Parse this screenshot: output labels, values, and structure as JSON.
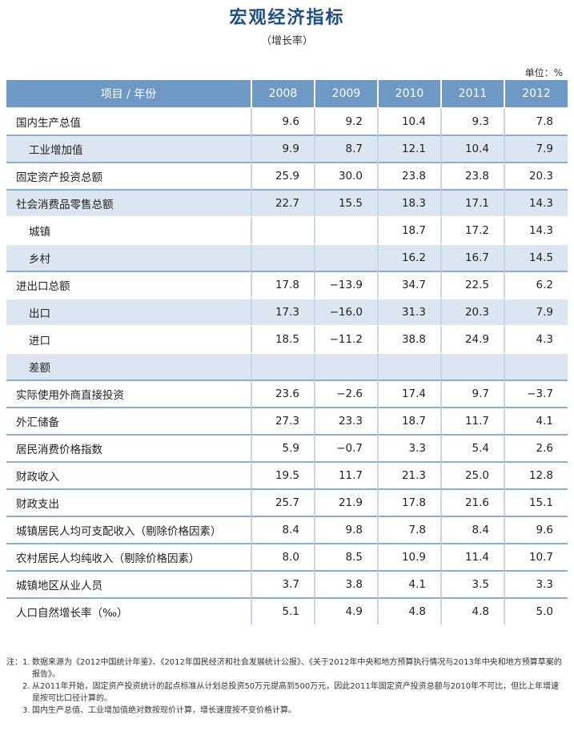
{
  "title": "宏观经济指标",
  "subtitle": "（增长率）",
  "unit": "单位：%",
  "table": {
    "headers": [
      "项目 / 年份",
      "2008",
      "2009",
      "2010",
      "2011",
      "2012"
    ],
    "rows": [
      {
        "label": "国内生产总值",
        "values": [
          "9.6",
          "9.2",
          "10.4",
          "9.3",
          "7.8"
        ]
      },
      {
        "label": "工业增加值",
        "values": [
          "9.9",
          "8.7",
          "12.1",
          "10.4",
          "7.9"
        ]
      },
      {
        "label": "固定资产投资总额",
        "values": [
          "25.9",
          "30.0",
          "23.8",
          "23.8",
          "20.3"
        ]
      },
      {
        "label": "社会消费品零售总额",
        "values": [
          "22.7",
          "15.5",
          "18.3",
          "17.1",
          "14.3"
        ]
      },
      {
        "label": "城镇",
        "values": [
          "",
          "",
          "18.7",
          "17.2",
          "14.3"
        ]
      },
      {
        "label": "乡村",
        "values": [
          "",
          "",
          "16.2",
          "16.7",
          "14.5"
        ]
      },
      {
        "label": "进出口总额",
        "values": [
          "17.8",
          "−13.9",
          "34.7",
          "22.5",
          "6.2"
        ]
      },
      {
        "label": "出口",
        "values": [
          "17.3",
          "−16.0",
          "31.3",
          "20.3",
          "7.9"
        ]
      },
      {
        "label": "进口",
        "values": [
          "18.5",
          "−11.2",
          "38.8",
          "24.9",
          "4.3"
        ]
      },
      {
        "label": "差额",
        "values": [
          "",
          "",
          "",
          "",
          ""
        ]
      },
      {
        "label": "实际使用外商直接投资",
        "values": [
          "23.6",
          "−2.6",
          "17.4",
          "9.7",
          "−3.7"
        ]
      },
      {
        "label": "外汇储备",
        "values": [
          "27.3",
          "23.3",
          "18.7",
          "11.7",
          "4.1"
        ]
      },
      {
        "label": "居民消费价格指数",
        "values": [
          "5.9",
          "−0.7",
          "3.3",
          "5.4",
          "2.6"
        ]
      },
      {
        "label": "财政收入",
        "values": [
          "19.5",
          "11.7",
          "21.3",
          "25.0",
          "12.8"
        ]
      },
      {
        "label": "财政支出",
        "values": [
          "25.7",
          "21.9",
          "17.8",
          "21.6",
          "15.1"
        ]
      },
      {
        "label": "城镇居民人均可支配收入（剔除价格因素）",
        "values": [
          "8.4",
          "9.8",
          "7.8",
          "8.4",
          "9.6"
        ]
      },
      {
        "label": "农村居民人均纯收入（剔除价格因素）",
        "values": [
          "8.0",
          "8.5",
          "10.9",
          "11.4",
          "10.7"
        ]
      },
      {
        "label": "城镇地区从业人员",
        "values": [
          "3.7",
          "3.8",
          "4.1",
          "3.5",
          "3.3"
        ]
      },
      {
        "label": "人口自然增长率（‰）",
        "values": [
          "5.1",
          "4.9",
          "4.8",
          "4.8",
          "5.0"
        ]
      }
    ]
  },
  "notes": {
    "lead": "注：",
    "items": [
      {
        "num": "1.",
        "text": "数据来源为《2012中国统计年鉴》、《2012年国民经济和社会发展统计公报》、《关于2012年中央和地方预算执行情况与2013年中央和地方预算草案的报告》。"
      },
      {
        "num": "2.",
        "text": "从2011年开始，固定资产投资统计的起点标准从计划总投资50万元提高到500万元，因此2011年固定资产投资总额与2010年不可比，但比上年增速是按可比口径计算的。"
      },
      {
        "num": "3.",
        "text": "国内生产总值、工业增加值绝对数按现价计算，增长速度按不变价格计算。"
      }
    ]
  }
}
